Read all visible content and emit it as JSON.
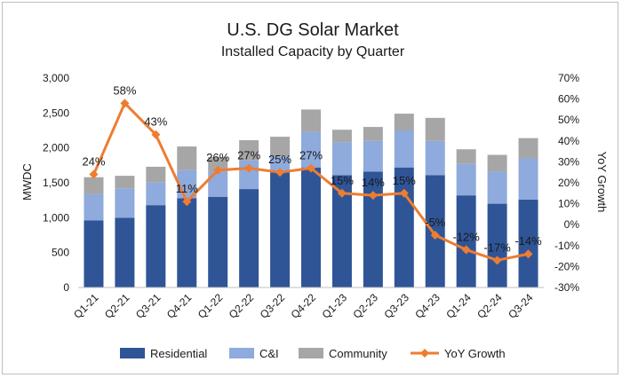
{
  "chart_data": {
    "type": "bar",
    "title": "U.S. DG Solar Market",
    "subtitle": "Installed Capacity by Quarter",
    "ylabel": "MWDC",
    "y2label": "YoY Growth",
    "ylim": [
      0,
      3000
    ],
    "y2lim": [
      -30,
      70
    ],
    "yticks": [
      "0",
      "500",
      "1,000",
      "1,500",
      "2,000",
      "2,500",
      "3,000"
    ],
    "y2ticks": [
      "-30%",
      "-20%",
      "-10%",
      "0%",
      "10%",
      "20%",
      "30%",
      "40%",
      "50%",
      "60%",
      "70%"
    ],
    "categories": [
      "Q1-21",
      "Q2-21",
      "Q3-21",
      "Q4-21",
      "Q1-22",
      "Q2-22",
      "Q3-22",
      "Q4-22",
      "Q1-23",
      "Q2-23",
      "Q3-23",
      "Q4-23",
      "Q1-24",
      "Q2-24",
      "Q3-24"
    ],
    "series": [
      {
        "name": "Residential",
        "kind": "bar",
        "color": "#2f5597",
        "values": [
          960,
          1000,
          1180,
          1280,
          1300,
          1410,
          1650,
          1720,
          1610,
          1660,
          1720,
          1610,
          1320,
          1200,
          1260
        ]
      },
      {
        "name": "C&I",
        "kind": "bar",
        "color": "#8faadc",
        "values": [
          380,
          420,
          330,
          400,
          360,
          410,
          230,
          510,
          470,
          440,
          530,
          490,
          450,
          460,
          590
        ]
      },
      {
        "name": "Community",
        "kind": "bar",
        "color": "#a6a6a6",
        "values": [
          240,
          180,
          220,
          340,
          210,
          290,
          280,
          320,
          180,
          200,
          240,
          330,
          210,
          240,
          290
        ]
      },
      {
        "name": "YoY Growth",
        "kind": "line",
        "axis": "right",
        "color": "#ed7d31",
        "values": [
          24,
          58,
          43,
          11,
          26,
          27,
          25,
          27,
          15,
          14,
          15,
          -5,
          -12,
          -17,
          -14
        ],
        "labels": [
          "24%",
          "58%",
          "43%",
          "11%",
          "26%",
          "27%",
          "25%",
          "27%",
          "15%",
          "14%",
          "15%",
          "-5%",
          "-12%",
          "-17%",
          "-14%"
        ]
      }
    ],
    "legend": [
      "Residential",
      "C&I",
      "Community",
      "YoY Growth"
    ],
    "legend_position": "bottom",
    "grid": false
  }
}
